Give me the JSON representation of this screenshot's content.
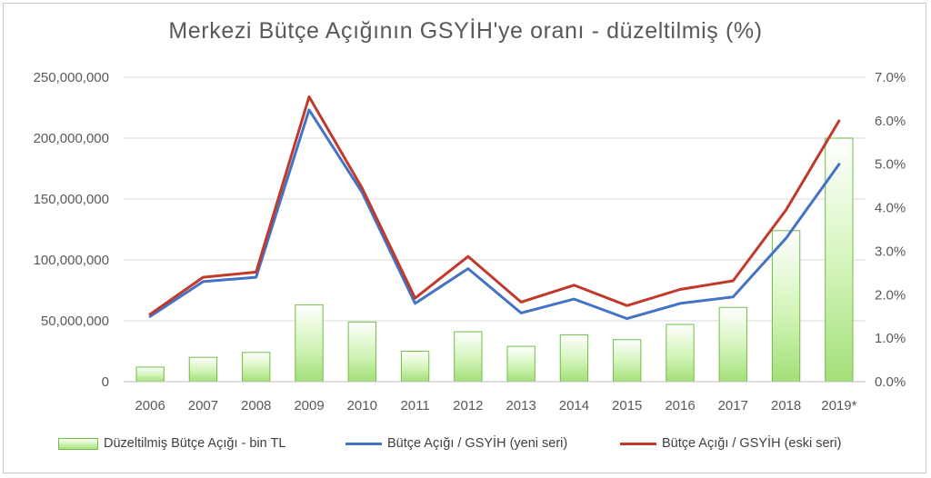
{
  "chart_data": {
    "type": "bar",
    "title": "Merkezi Bütçe Açığının GSYİH'ye oranı - düzeltilmiş (%)",
    "categories": [
      "2006",
      "2007",
      "2008",
      "2009",
      "2010",
      "2011",
      "2012",
      "2013",
      "2014",
      "2015",
      "2016",
      "2017",
      "2018",
      "2019*"
    ],
    "series": [
      {
        "name": "Düzeltilmiş Bütçe Açığı - bin TL",
        "type": "bar",
        "axis": "left",
        "color": "#9bdc6e",
        "values": [
          12000000,
          20000000,
          24000000,
          63000000,
          49000000,
          25000000,
          41000000,
          29000000,
          38500000,
          34500000,
          47000000,
          61000000,
          124000000,
          200000000
        ]
      },
      {
        "name": "Bütçe Açığı / GSYİH (yeni seri)",
        "type": "line",
        "axis": "right",
        "color": "#4472c4",
        "values": [
          1.5,
          2.3,
          2.4,
          6.25,
          4.35,
          1.8,
          2.6,
          1.58,
          1.9,
          1.45,
          1.8,
          1.95,
          3.3,
          5.0
        ]
      },
      {
        "name": "Bütçe Açığı / GSYİH (eski seri)",
        "type": "line",
        "axis": "right",
        "color": "#c0392b",
        "values": [
          1.55,
          2.4,
          2.52,
          6.55,
          4.45,
          1.92,
          2.88,
          1.83,
          2.22,
          1.75,
          2.12,
          2.32,
          3.95,
          6.0
        ]
      }
    ],
    "y_left": {
      "range": [
        0,
        250000000
      ],
      "ticks": [
        0,
        50000000,
        100000000,
        150000000,
        200000000,
        250000000
      ],
      "tick_labels": [
        "0",
        "50,000,000",
        "100,000,000",
        "150,000,000",
        "200,000,000",
        "250,000,000"
      ]
    },
    "y_right": {
      "range": [
        0,
        7
      ],
      "ticks": [
        0,
        1,
        2,
        3,
        4,
        5,
        6,
        7
      ],
      "tick_labels": [
        "0.0%",
        "1.0%",
        "2.0%",
        "3.0%",
        "4.0%",
        "5.0%",
        "6.0%",
        "7.0%"
      ]
    },
    "grid": true,
    "legend_position": "bottom"
  }
}
